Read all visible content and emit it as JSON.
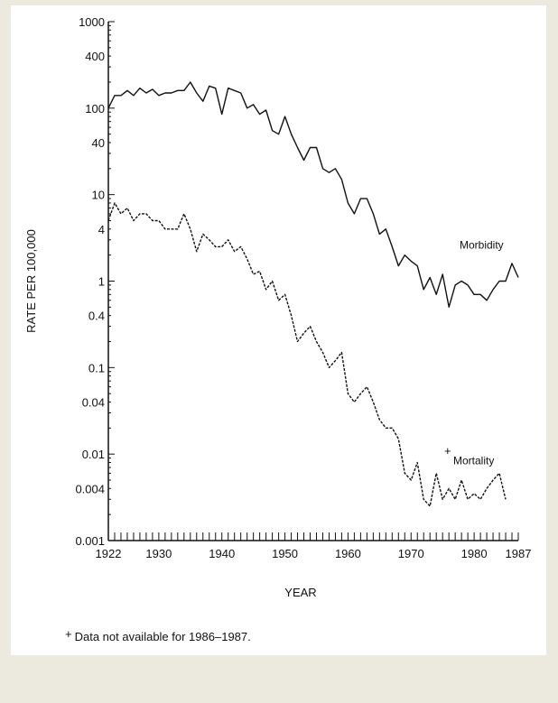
{
  "chart_data": {
    "type": "line",
    "title": "",
    "xlabel": "YEAR",
    "ylabel": "RATE PER 100,000",
    "y_scale": "log",
    "ylim": [
      0.001,
      1000
    ],
    "xlim": [
      1922,
      1987
    ],
    "x_ticks": [
      "1922",
      "1930",
      "1940",
      "1950",
      "1960",
      "1970",
      "1980",
      "1987"
    ],
    "y_ticks": [
      "1000",
      "400",
      "100",
      "40",
      "10",
      "4",
      "1",
      "0.4",
      "0.1",
      "0.04",
      "0.01",
      "0.004",
      "0.001"
    ],
    "series": [
      {
        "name": "Morbidity",
        "label": "Morbidity",
        "color": "#111111",
        "x": [
          1922,
          1923,
          1924,
          1925,
          1926,
          1927,
          1928,
          1929,
          1930,
          1931,
          1932,
          1933,
          1934,
          1935,
          1936,
          1937,
          1938,
          1939,
          1940,
          1941,
          1942,
          1943,
          1944,
          1945,
          1946,
          1947,
          1948,
          1949,
          1950,
          1951,
          1952,
          1953,
          1954,
          1955,
          1956,
          1957,
          1958,
          1959,
          1960,
          1961,
          1962,
          1963,
          1964,
          1965,
          1966,
          1967,
          1968,
          1969,
          1970,
          1971,
          1972,
          1973,
          1974,
          1975,
          1976,
          1977,
          1978,
          1979,
          1980,
          1981,
          1982,
          1983,
          1984,
          1985,
          1986,
          1987
        ],
        "values": [
          100,
          140,
          140,
          160,
          140,
          170,
          150,
          165,
          140,
          150,
          150,
          160,
          160,
          200,
          150,
          120,
          180,
          170,
          85,
          170,
          160,
          150,
          100,
          110,
          85,
          95,
          55,
          50,
          80,
          50,
          35,
          25,
          35,
          35,
          20,
          18,
          20,
          15,
          8,
          6,
          9,
          9,
          6,
          3.5,
          4,
          2.5,
          1.5,
          2,
          1.7,
          1.5,
          0.8,
          1.1,
          0.7,
          1.2,
          0.5,
          0.9,
          1.0,
          0.9,
          0.7,
          0.7,
          0.6,
          0.8,
          1.0,
          1.0,
          1.6,
          1.1
        ]
      },
      {
        "name": "Mortality",
        "label": "Mortality",
        "color": "#111111",
        "x": [
          1922,
          1923,
          1924,
          1925,
          1926,
          1927,
          1928,
          1929,
          1930,
          1931,
          1932,
          1933,
          1934,
          1935,
          1936,
          1937,
          1938,
          1939,
          1940,
          1941,
          1942,
          1943,
          1944,
          1945,
          1946,
          1947,
          1948,
          1949,
          1950,
          1951,
          1952,
          1953,
          1954,
          1955,
          1956,
          1957,
          1958,
          1959,
          1960,
          1961,
          1962,
          1963,
          1964,
          1965,
          1966,
          1967,
          1968,
          1969,
          1970,
          1971,
          1972,
          1973,
          1974,
          1975,
          1976,
          1977,
          1978,
          1979,
          1980,
          1981,
          1982,
          1983,
          1984,
          1985
        ],
        "values": [
          5,
          8,
          6,
          7,
          5,
          6,
          6,
          5,
          5,
          4,
          4,
          4,
          6,
          4,
          2.2,
          3.5,
          3,
          2.5,
          2.5,
          3,
          2.2,
          2.5,
          1.8,
          1.2,
          1.3,
          0.8,
          1.0,
          0.6,
          0.7,
          0.4,
          0.2,
          0.25,
          0.3,
          0.2,
          0.15,
          0.1,
          0.12,
          0.15,
          0.05,
          0.04,
          0.05,
          0.06,
          0.04,
          0.025,
          0.02,
          0.02,
          0.015,
          0.006,
          0.005,
          0.008,
          0.003,
          0.0025,
          0.006,
          0.003,
          0.004,
          0.003,
          0.005,
          0.003,
          0.0035,
          0.003,
          0.004,
          0.005,
          0.006,
          0.003
        ]
      }
    ]
  },
  "footnote": {
    "marker": "+",
    "text": "Data not available for 1986–1987."
  }
}
